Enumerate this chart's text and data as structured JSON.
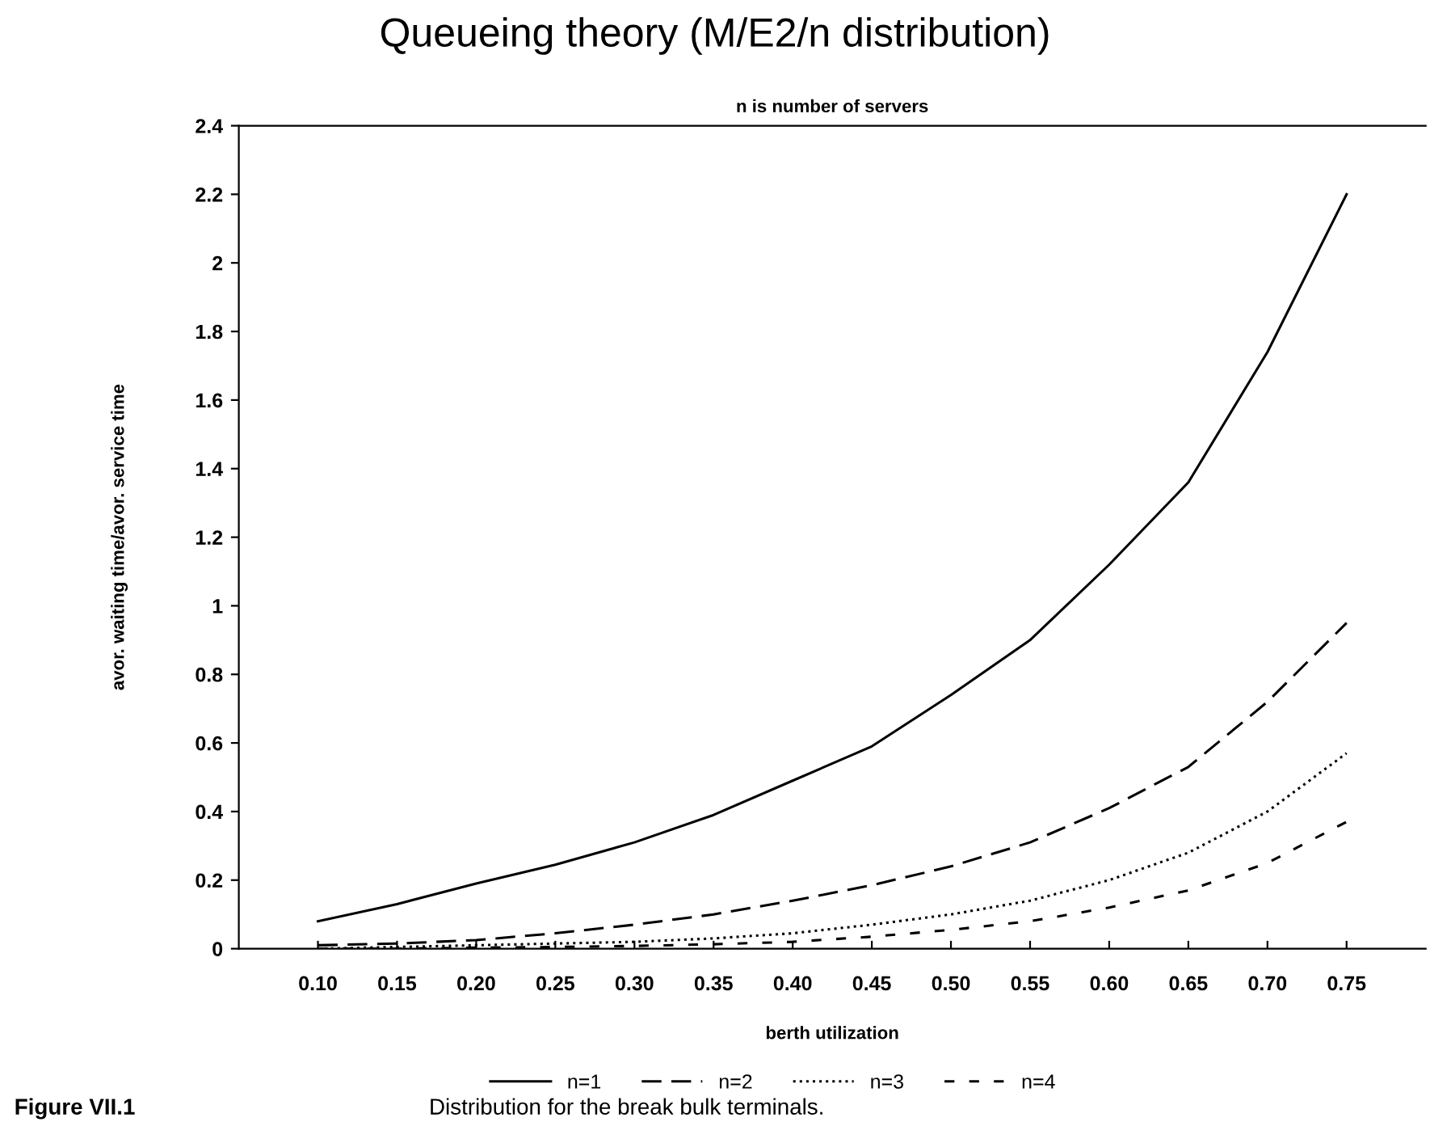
{
  "chart_data": {
    "type": "line",
    "title": "Queueing theory (M/E2/n distribution)",
    "subtitle": "n is number of servers",
    "xlabel": "berth utilization",
    "ylabel": "avor. waiting time/avor. service time",
    "x": [
      0.1,
      0.15,
      0.2,
      0.25,
      0.3,
      0.35,
      0.4,
      0.45,
      0.5,
      0.55,
      0.6,
      0.65,
      0.7,
      0.75
    ],
    "series": [
      {
        "name": "n=1",
        "color": "#000000",
        "line_style": "solid",
        "values": [
          0.08,
          0.13,
          0.19,
          0.245,
          0.31,
          0.39,
          0.49,
          0.59,
          0.74,
          0.9,
          1.12,
          1.36,
          1.74,
          2.2
        ]
      },
      {
        "name": "n=2",
        "color": "#000000",
        "line_style": "dashed",
        "values": [
          0.01,
          0.015,
          0.025,
          0.045,
          0.07,
          0.1,
          0.14,
          0.185,
          0.24,
          0.31,
          0.41,
          0.53,
          0.72,
          0.95
        ]
      },
      {
        "name": "n=3",
        "color": "#000000",
        "line_style": "dotted",
        "values": [
          0.0,
          0.005,
          0.01,
          0.015,
          0.02,
          0.03,
          0.045,
          0.07,
          0.1,
          0.14,
          0.2,
          0.28,
          0.4,
          0.57
        ]
      },
      {
        "name": "n=4",
        "color": "#000000",
        "line_style": "dashed",
        "values": [
          0.0,
          0.0,
          0.003,
          0.005,
          0.008,
          0.013,
          0.02,
          0.035,
          0.055,
          0.08,
          0.12,
          0.17,
          0.25,
          0.37
        ]
      }
    ],
    "xlim": [
      0.05,
      0.8
    ],
    "xticks": [
      {
        "value": 0.1,
        "label": "0.10"
      },
      {
        "value": 0.15,
        "label": "0.15"
      },
      {
        "value": 0.2,
        "label": "0.20"
      },
      {
        "value": 0.25,
        "label": "0.25"
      },
      {
        "value": 0.3,
        "label": "0.30"
      },
      {
        "value": 0.35,
        "label": "0.35"
      },
      {
        "value": 0.4,
        "label": "0.40"
      },
      {
        "value": 0.45,
        "label": "0.45"
      },
      {
        "value": 0.5,
        "label": "0.50"
      },
      {
        "value": 0.55,
        "label": "0.55"
      },
      {
        "value": 0.6,
        "label": "0.60"
      },
      {
        "value": 0.65,
        "label": "0.65"
      },
      {
        "value": 0.7,
        "label": "0.70"
      },
      {
        "value": 0.75,
        "label": "0.75"
      }
    ],
    "ylim": [
      0,
      2.4
    ],
    "yticks": [
      0,
      0.2,
      0.4,
      0.6,
      0.8,
      1,
      1.2,
      1.4,
      1.6,
      1.8,
      2,
      2.2,
      2.4
    ],
    "grid": false,
    "legend": "bottom",
    "marker": "none",
    "annotations": [
      "Figure VII.1",
      "Distribution for the break bulk terminals."
    ]
  }
}
